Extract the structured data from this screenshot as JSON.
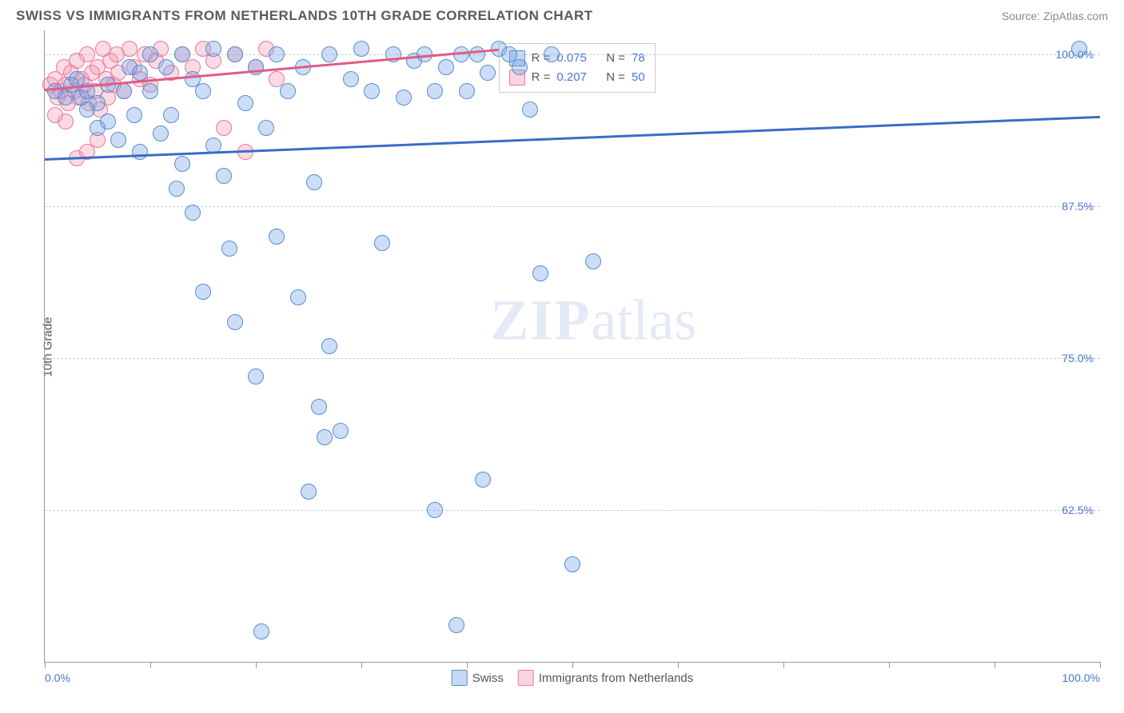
{
  "header": {
    "title": "SWISS VS IMMIGRANTS FROM NETHERLANDS 10TH GRADE CORRELATION CHART",
    "source_prefix": "Source: ",
    "source_link": "ZipAtlas.com"
  },
  "axes": {
    "ylabel": "10th Grade",
    "xlim": [
      0,
      100
    ],
    "ylim": [
      50,
      102
    ],
    "ytick_values": [
      62.5,
      75.0,
      87.5,
      100.0
    ],
    "ytick_labels": [
      "62.5%",
      "75.0%",
      "87.5%",
      "100.0%"
    ],
    "xtick_values": [
      0,
      10,
      20,
      30,
      40,
      50,
      60,
      70,
      80,
      90,
      100
    ],
    "x_left_label": "0.0%",
    "x_right_label": "100.0%"
  },
  "watermark": {
    "zip": "ZIP",
    "atlas": "atlas"
  },
  "stats_box": {
    "r_label": "R =",
    "n_label": "N =",
    "series": [
      {
        "color": "blue",
        "r": "0.075",
        "n": "78"
      },
      {
        "color": "pink",
        "r": "0.207",
        "n": "50"
      }
    ]
  },
  "bottom_legend": {
    "blue_label": "Swiss",
    "pink_label": "Immigrants from Netherlands"
  },
  "trend_lines": {
    "blue": {
      "x1": 0,
      "y1": 91.5,
      "x2": 100,
      "y2": 95.0,
      "color": "#3a6cc7"
    },
    "pink": {
      "x1": 0,
      "y1": 97.2,
      "x2": 43,
      "y2": 100.5,
      "color": "#e05b85"
    }
  },
  "series_blue": [
    [
      1,
      97
    ],
    [
      2,
      96.5
    ],
    [
      2.5,
      97.5
    ],
    [
      3,
      98
    ],
    [
      3.5,
      96.5
    ],
    [
      4,
      97
    ],
    [
      4,
      95.5
    ],
    [
      5,
      96
    ],
    [
      5,
      94
    ],
    [
      6,
      97.5
    ],
    [
      6,
      94.5
    ],
    [
      7,
      93
    ],
    [
      7.5,
      97
    ],
    [
      8,
      99
    ],
    [
      8.5,
      95
    ],
    [
      9,
      98.5
    ],
    [
      9,
      92
    ],
    [
      10,
      100
    ],
    [
      10,
      97
    ],
    [
      11,
      93.5
    ],
    [
      11.5,
      99
    ],
    [
      12,
      95
    ],
    [
      12.5,
      89
    ],
    [
      13,
      100
    ],
    [
      13,
      91
    ],
    [
      14,
      98
    ],
    [
      14,
      87
    ],
    [
      15,
      97
    ],
    [
      15,
      80.5
    ],
    [
      16,
      100.5
    ],
    [
      16,
      92.5
    ],
    [
      17,
      90
    ],
    [
      17.5,
      84
    ],
    [
      18,
      100
    ],
    [
      18,
      78
    ],
    [
      19,
      96
    ],
    [
      20,
      99
    ],
    [
      20,
      73.5
    ],
    [
      20.5,
      52.5
    ],
    [
      21,
      94
    ],
    [
      22,
      100
    ],
    [
      22,
      85
    ],
    [
      23,
      97
    ],
    [
      24,
      80
    ],
    [
      24.5,
      99
    ],
    [
      25,
      64
    ],
    [
      25.5,
      89.5
    ],
    [
      26,
      71
    ],
    [
      26.5,
      68.5
    ],
    [
      27,
      76
    ],
    [
      27,
      100
    ],
    [
      28,
      69
    ],
    [
      29,
      98
    ],
    [
      30,
      100.5
    ],
    [
      31,
      97
    ],
    [
      32,
      84.5
    ],
    [
      33,
      100
    ],
    [
      34,
      96.5
    ],
    [
      35,
      99.5
    ],
    [
      36,
      100
    ],
    [
      37,
      97
    ],
    [
      37,
      62.5
    ],
    [
      38,
      99
    ],
    [
      39,
      53
    ],
    [
      39.5,
      100
    ],
    [
      40,
      97
    ],
    [
      41,
      100
    ],
    [
      41.5,
      65
    ],
    [
      42,
      98.5
    ],
    [
      43,
      100.5
    ],
    [
      44,
      100
    ],
    [
      45,
      99
    ],
    [
      46,
      95.5
    ],
    [
      47,
      82
    ],
    [
      48,
      100
    ],
    [
      50,
      58
    ],
    [
      52,
      83
    ],
    [
      98,
      100.5
    ]
  ],
  "series_pink": [
    [
      0.5,
      97.5
    ],
    [
      1,
      98
    ],
    [
      1.2,
      96.5
    ],
    [
      1.5,
      97
    ],
    [
      1.8,
      99
    ],
    [
      2,
      97.5
    ],
    [
      2.2,
      96
    ],
    [
      2.5,
      98.5
    ],
    [
      2.8,
      97
    ],
    [
      3,
      99.5
    ],
    [
      3.2,
      96.5
    ],
    [
      3.5,
      98
    ],
    [
      3.8,
      97.5
    ],
    [
      4,
      100
    ],
    [
      4.2,
      96
    ],
    [
      4.5,
      98.5
    ],
    [
      4.8,
      97
    ],
    [
      5,
      99
    ],
    [
      5.2,
      95.5
    ],
    [
      5.5,
      100.5
    ],
    [
      5.8,
      98
    ],
    [
      6,
      96.5
    ],
    [
      6.2,
      99.5
    ],
    [
      6.5,
      97.5
    ],
    [
      6.8,
      100
    ],
    [
      7,
      98.5
    ],
    [
      7.5,
      97
    ],
    [
      8,
      100.5
    ],
    [
      8.5,
      99
    ],
    [
      9,
      98
    ],
    [
      9.5,
      100
    ],
    [
      10,
      97.5
    ],
    [
      10.5,
      99.5
    ],
    [
      11,
      100.5
    ],
    [
      12,
      98.5
    ],
    [
      13,
      100
    ],
    [
      14,
      99
    ],
    [
      15,
      100.5
    ],
    [
      16,
      99.5
    ],
    [
      17,
      94
    ],
    [
      18,
      100
    ],
    [
      19,
      92
    ],
    [
      20,
      99
    ],
    [
      21,
      100.5
    ],
    [
      22,
      98
    ],
    [
      5,
      93
    ],
    [
      3,
      91.5
    ],
    [
      2,
      94.5
    ],
    [
      4,
      92
    ],
    [
      1,
      95
    ]
  ],
  "styling": {
    "background_color": "#ffffff",
    "grid_color": "#cccccc",
    "axis_color": "#999999",
    "blue_fill": "rgba(110,160,230,0.35)",
    "blue_stroke": "#5a8bd0",
    "pink_fill": "rgba(240,150,175,0.35)",
    "pink_stroke": "#e87a9a",
    "label_color": "#4a76d4",
    "title_color": "#5a5a5a",
    "point_radius": 9,
    "trend_width": 2.5,
    "title_fontsize": 17,
    "label_fontsize": 14,
    "ylabel_fontsize": 15
  }
}
